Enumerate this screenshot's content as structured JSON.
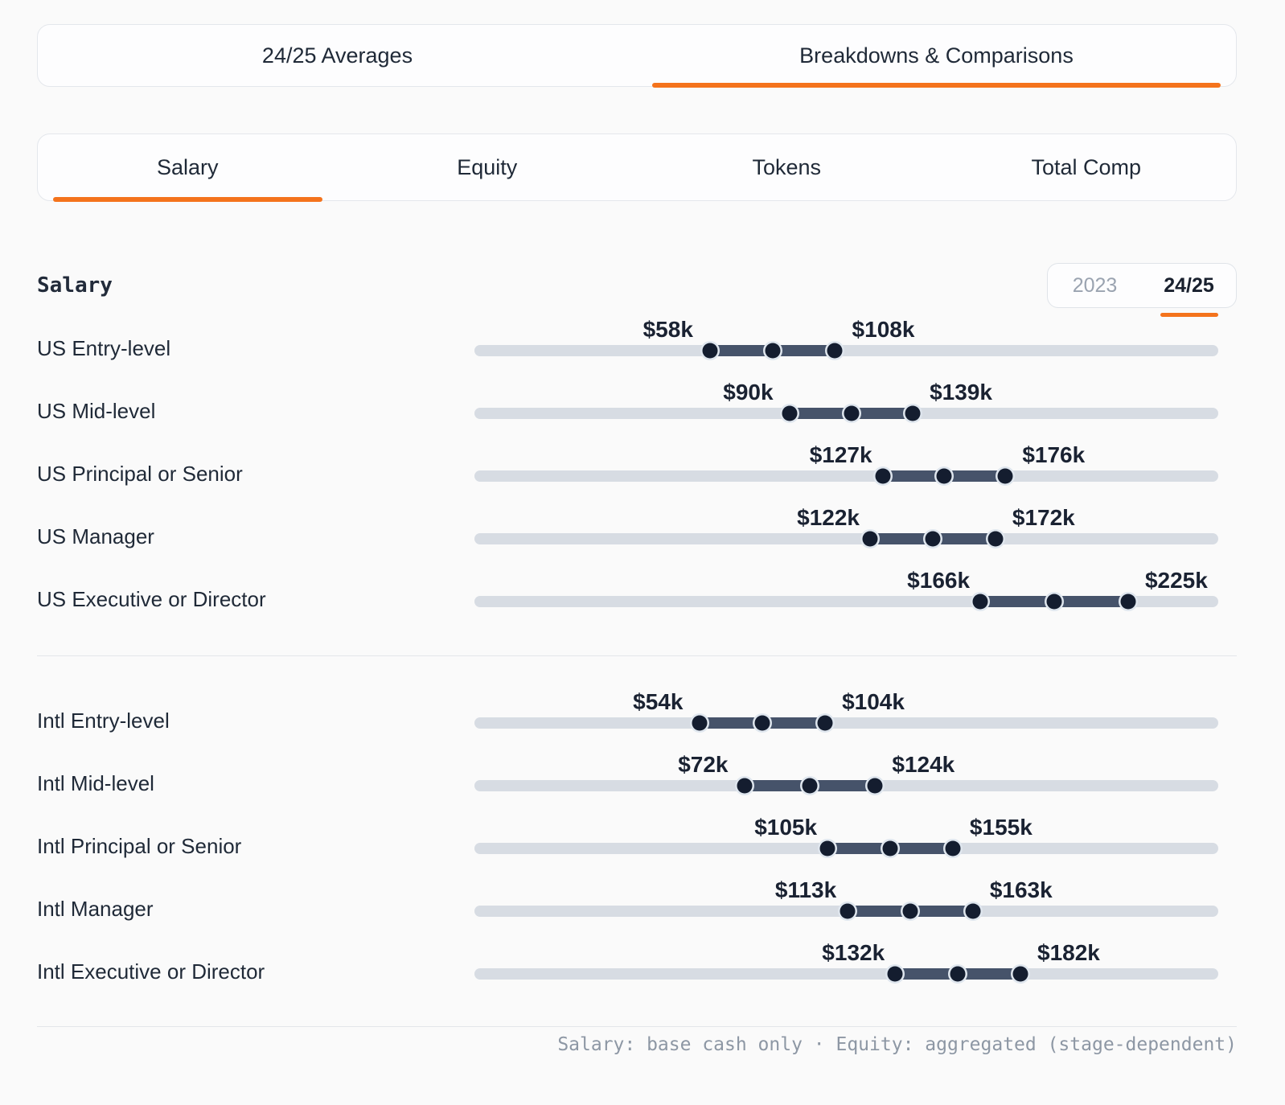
{
  "accent_color": "#f4731c",
  "top_tabs": {
    "items": [
      {
        "label": "24/25 Averages",
        "active": false
      },
      {
        "label": "Breakdowns & Comparisons",
        "active": true
      }
    ]
  },
  "sub_tabs": {
    "items": [
      {
        "label": "Salary",
        "active": true
      },
      {
        "label": "Equity",
        "active": false
      },
      {
        "label": "Tokens",
        "active": false
      },
      {
        "label": "Total Comp",
        "active": false
      }
    ]
  },
  "section": {
    "title": "Salary"
  },
  "year_toggle": {
    "options": [
      {
        "label": "2023",
        "active": false
      },
      {
        "label": "24/25",
        "active": true
      }
    ]
  },
  "chart_data": {
    "type": "bar",
    "subtype": "horizontal_range_dumbbell",
    "title": "Salary",
    "period": "24/25",
    "unit": "USD thousands",
    "axis": {
      "domain_min": -36,
      "domain_max": 261,
      "grid": false
    },
    "marker_note": "each range shows min, midpoint and max dots",
    "groups": [
      {
        "name": "US",
        "rows": [
          {
            "label": "US Entry-level",
            "min": 58,
            "max": 108,
            "min_label": "$58k",
            "max_label": "$108k"
          },
          {
            "label": "US Mid-level",
            "min": 90,
            "max": 139,
            "min_label": "$90k",
            "max_label": "$139k"
          },
          {
            "label": "US Principal or Senior",
            "min": 127,
            "max": 176,
            "min_label": "$127k",
            "max_label": "$176k"
          },
          {
            "label": "US Manager",
            "min": 122,
            "max": 172,
            "min_label": "$122k",
            "max_label": "$172k"
          },
          {
            "label": "US Executive or Director",
            "min": 166,
            "max": 225,
            "min_label": "$166k",
            "max_label": "$225k"
          }
        ]
      },
      {
        "name": "Intl",
        "rows": [
          {
            "label": "Intl Entry-level",
            "min": 54,
            "max": 104,
            "min_label": "$54k",
            "max_label": "$104k"
          },
          {
            "label": "Intl Mid-level",
            "min": 72,
            "max": 124,
            "min_label": "$72k",
            "max_label": "$124k"
          },
          {
            "label": "Intl Principal or Senior",
            "min": 105,
            "max": 155,
            "min_label": "$105k",
            "max_label": "$155k"
          },
          {
            "label": "Intl Manager",
            "min": 113,
            "max": 163,
            "min_label": "$113k",
            "max_label": "$163k"
          },
          {
            "label": "Intl Executive or Director",
            "min": 132,
            "max": 182,
            "min_label": "$132k",
            "max_label": "$182k"
          }
        ]
      }
    ]
  },
  "footer": {
    "note": "Salary: base cash only · Equity: aggregated (stage-dependent)"
  }
}
